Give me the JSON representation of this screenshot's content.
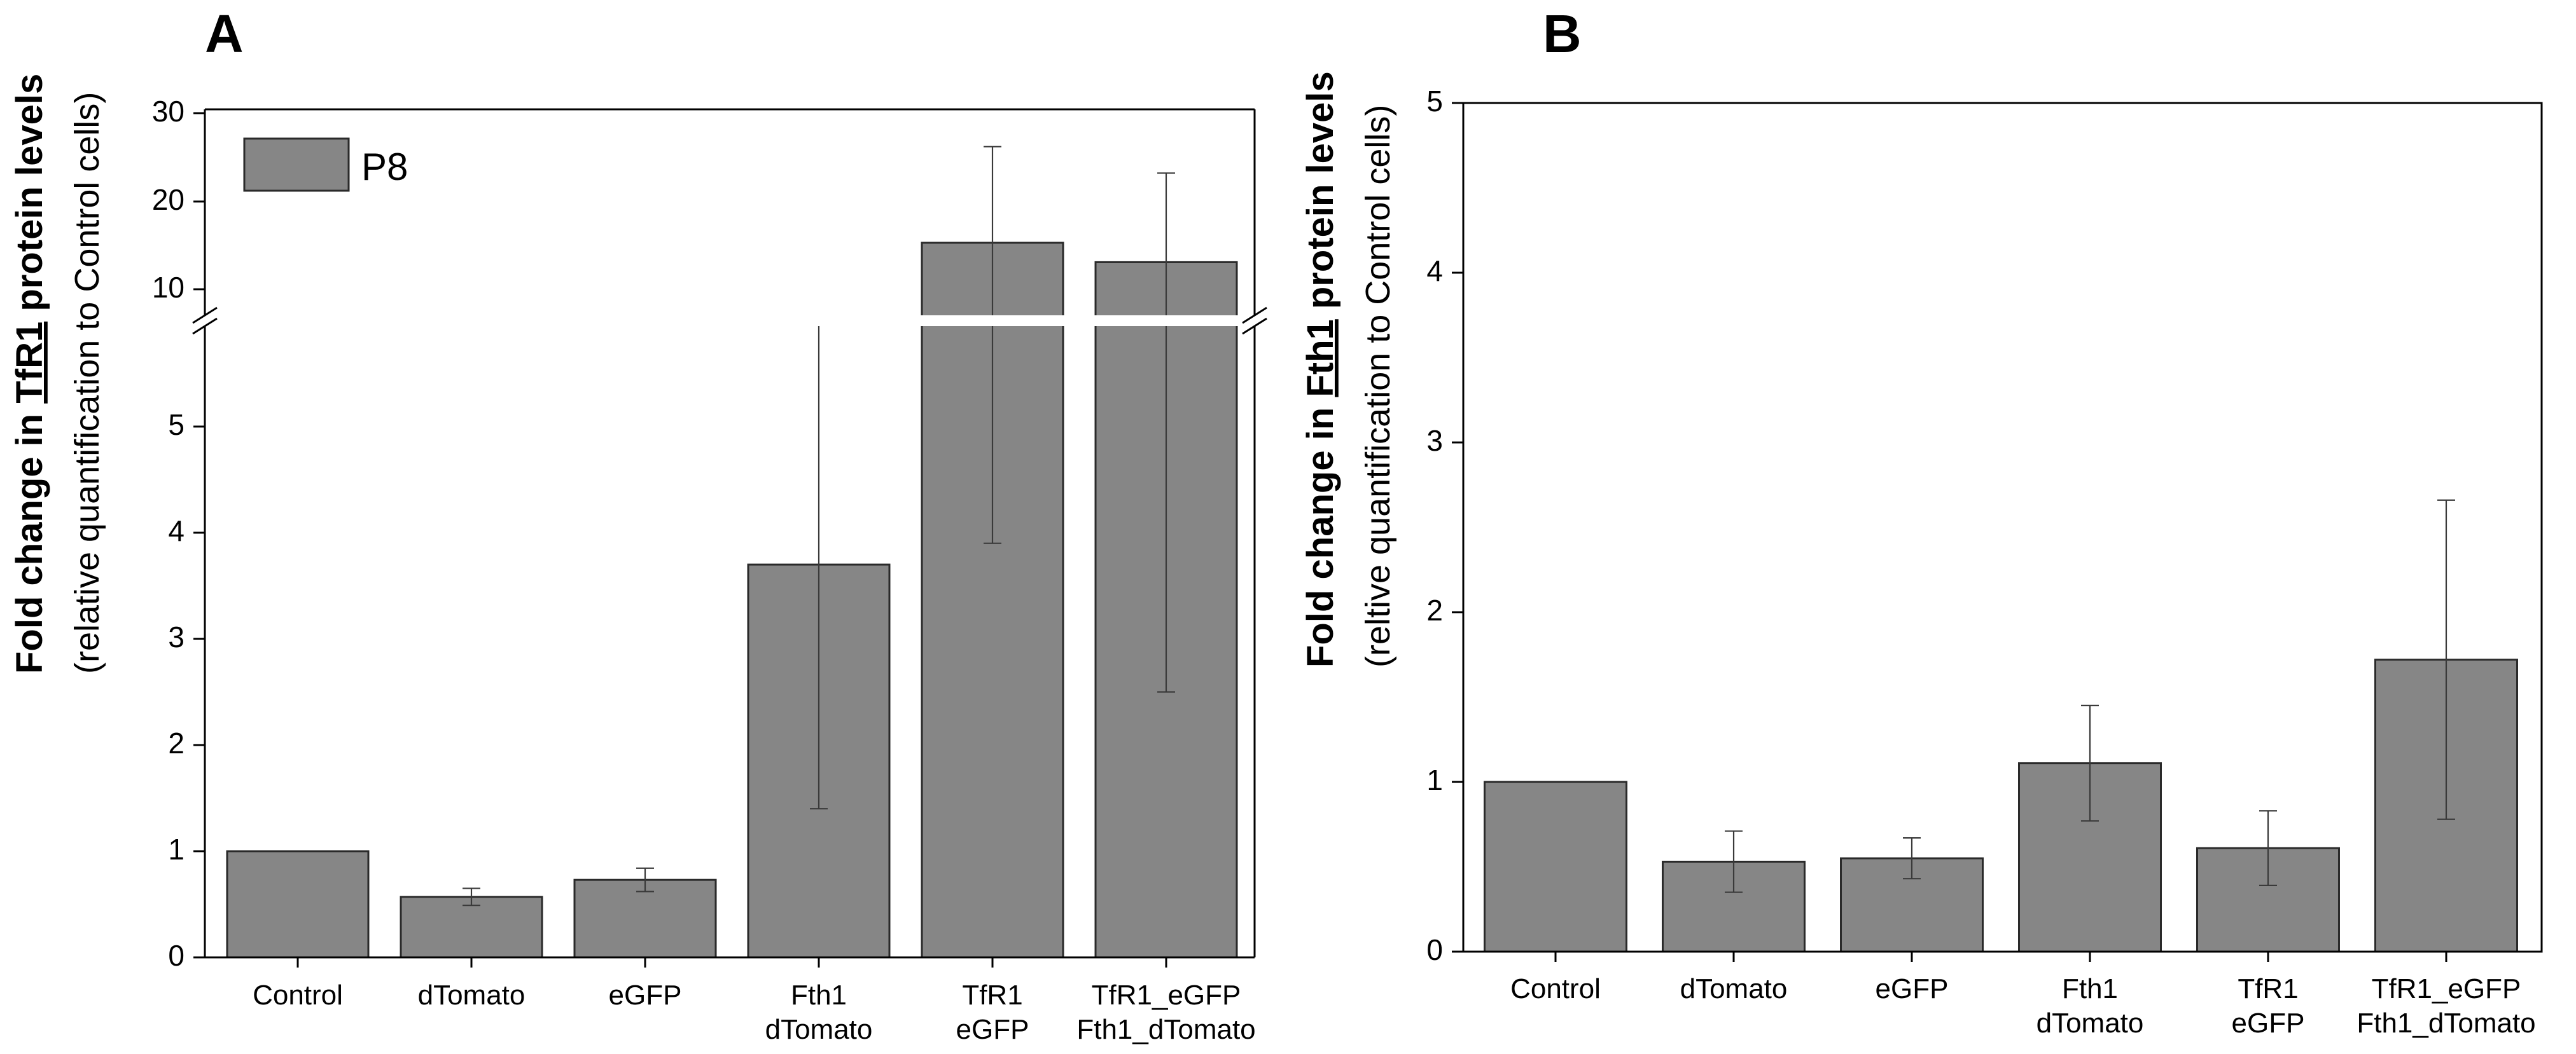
{
  "chart_data": [
    {
      "type": "bar",
      "panel_label": "A",
      "categories": [
        [
          "Control"
        ],
        [
          "dTomato"
        ],
        [
          "eGFP"
        ],
        [
          "Fth1",
          "dTomato"
        ],
        [
          "TfR1",
          "eGFP"
        ],
        [
          "TfR1_eGFP",
          "Fth1_dTomato"
        ]
      ],
      "series": [
        {
          "name": "P8",
          "values": [
            1.0,
            0.57,
            0.73,
            3.7,
            14.8,
            12.6
          ],
          "error": [
            0.0,
            0.08,
            0.11,
            2.3,
            10.9,
            10.1
          ]
        }
      ],
      "ylabel_bold_prefix": "Fold change in ",
      "ylabel_bold_underlined": "TfR1",
      "ylabel_bold_suffix": " protein levels",
      "ylabel_sub": "(relative quantification to Control cells)",
      "ylim_lower": [
        0,
        6
      ],
      "ylim_upper": [
        6,
        30
      ],
      "yticks_lower": [
        "0",
        "1",
        "2",
        "3",
        "4",
        "5"
      ],
      "yticks_upper": [
        "10",
        "20",
        "30"
      ],
      "legend": "P8",
      "legend_position": "top-left",
      "break_axis": true
    },
    {
      "type": "bar",
      "panel_label": "B",
      "categories": [
        [
          "Control"
        ],
        [
          "dTomato"
        ],
        [
          "eGFP"
        ],
        [
          "Fth1",
          "dTomato"
        ],
        [
          "TfR1",
          "eGFP"
        ],
        [
          "TfR1_eGFP",
          "Fth1_dTomato"
        ]
      ],
      "series": [
        {
          "name": "P8",
          "values": [
            1.0,
            0.53,
            0.55,
            1.11,
            0.61,
            1.72
          ],
          "error": [
            0.0,
            0.18,
            0.12,
            0.34,
            0.22,
            0.94
          ]
        }
      ],
      "ylabel_bold_prefix": "Fold change in ",
      "ylabel_bold_underlined": "Fth1",
      "ylabel_bold_suffix": " protein levels",
      "ylabel_sub": "(reltive quantification to Control cells)",
      "ylim": [
        0,
        5
      ],
      "yticks": [
        "0",
        "1",
        "2",
        "3",
        "4",
        "5"
      ],
      "break_axis": false
    }
  ]
}
